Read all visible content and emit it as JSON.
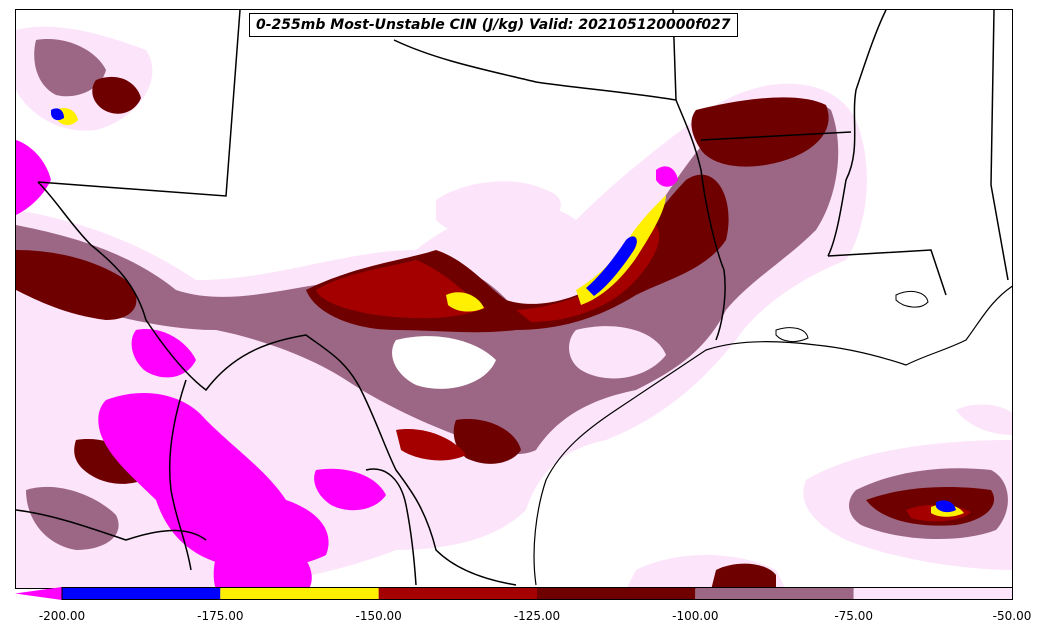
{
  "title": "0-255mb Most-Unstable CIN (J/kg) Valid: 202105120000f027",
  "colorbar": {
    "bins": [
      {
        "from": -200,
        "to": -175,
        "color": "#0000ff"
      },
      {
        "from": -175,
        "to": -150,
        "color": "#ffef00"
      },
      {
        "from": -150,
        "to": -125,
        "color": "#a50000"
      },
      {
        "from": -125,
        "to": -100,
        "color": "#6e0000"
      },
      {
        "from": -100,
        "to": -75,
        "color": "#9c6785"
      },
      {
        "from": -75,
        "to": -50,
        "color": "#fce4fa"
      }
    ],
    "extend_low_color": "#ff00ff",
    "tick_labels": [
      "-200.00",
      "-175.00",
      "-150.00",
      "-125.00",
      "-100.00",
      "-75.00",
      "-50.00"
    ]
  },
  "colors": {
    "magenta": "#ff00ff",
    "blue": "#0000ff",
    "yellow": "#ffef00",
    "red": "#a50000",
    "darkred": "#6e0000",
    "mauve": "#9c6785",
    "pink": "#fce4fa",
    "border": "#000000",
    "background": "#ffffff"
  }
}
